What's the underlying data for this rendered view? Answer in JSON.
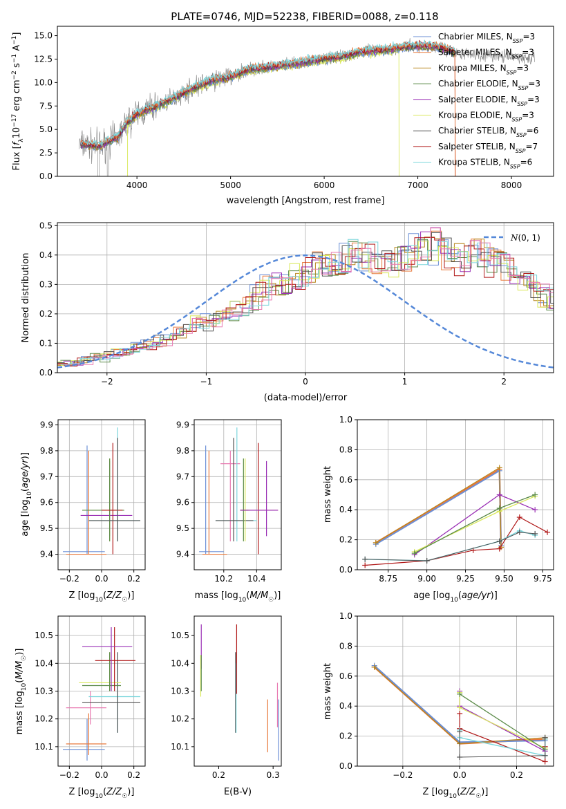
{
  "title": "PLATE=0746, MJD=52238, FIBERID=0088, z=0.118",
  "colors": {
    "Chabrier MILES": "#6b8fd6",
    "Salpeter MILES": "#e8783a",
    "Kroupa MILES": "#b8861c",
    "Chabrier ELODIE": "#5a8a48",
    "Salpeter ELODIE": "#9a2fb5",
    "Kroupa ELODIE": "#d9e85a",
    "Chabrier STELIB": "#505050",
    "Salpeter STELIB": "#b01818",
    "Kroupa STELIB": "#7ad6dc",
    "pink": "#e878b0",
    "observed": "#808080"
  },
  "chart_data": [
    {
      "type": "line",
      "id": "spectrum",
      "xlabel": "wavelength [Angstrom, rest frame]",
      "ylabel": "Flux [f_λ10^-17 erg cm^-2 s^-1 A^-1]",
      "xlim": [
        3150,
        8450
      ],
      "ylim": [
        0,
        16
      ],
      "xticks": [
        4000,
        5000,
        6000,
        7000,
        8000
      ],
      "yticks": [
        0.0,
        2.5,
        5.0,
        7.5,
        10.0,
        12.5,
        15.0
      ],
      "legend_position": "top-right",
      "legend": [
        {
          "label": "Chabrier MILES, N",
          "sub": "SSP",
          "n": "=3",
          "color_key": "Chabrier MILES"
        },
        {
          "label": "Salpeter MILES, N",
          "sub": "SSP",
          "n": "=3",
          "color_key": "Salpeter MILES"
        },
        {
          "label": "Kroupa MILES, N",
          "sub": "SSP",
          "n": "=3",
          "color_key": "Kroupa MILES"
        },
        {
          "label": "Chabrier ELODIE, N",
          "sub": "SSP",
          "n": "=3",
          "color_key": "Chabrier ELODIE"
        },
        {
          "label": "Salpeter ELODIE, N",
          "sub": "SSP",
          "n": "=3",
          "color_key": "Salpeter ELODIE"
        },
        {
          "label": "Kroupa ELODIE, N",
          "sub": "SSP",
          "n": "=3",
          "color_key": "Kroupa ELODIE"
        },
        {
          "label": "Chabrier STELIB, N",
          "sub": "SSP",
          "n": "=6",
          "color_key": "Chabrier STELIB"
        },
        {
          "label": "Salpeter STELIB, N",
          "sub": "SSP",
          "n": "=7",
          "color_key": "Salpeter STELIB"
        },
        {
          "label": "Kroupa STELIB, N",
          "sub": "SSP",
          "n": "=6",
          "color_key": "Kroupa STELIB"
        }
      ],
      "model_trend": {
        "x": [
          3400,
          3600,
          3800,
          3900,
          4000,
          4200,
          4400,
          4600,
          4800,
          5000,
          5200,
          5400,
          5600,
          5800,
          6000,
          6200,
          6400,
          6600,
          6800,
          7000,
          7200,
          7400
        ],
        "y": [
          3.4,
          3.2,
          4.2,
          5.8,
          6.6,
          7.4,
          8.4,
          9.4,
          10.2,
          10.6,
          11.4,
          11.6,
          11.9,
          12.2,
          12.5,
          12.8,
          13.3,
          13.4,
          13.7,
          13.9,
          13.8,
          13.2
        ]
      },
      "observed_range": [
        3380,
        8250
      ],
      "model_ranges": {
        "Kroupa ELODIE": [
          3900,
          6800
        ],
        "Salpeter MILES": [
          3400,
          7400
        ],
        "Salpeter STELIB": [
          3400,
          7400
        ],
        "Kroupa STELIB": [
          3400,
          7400
        ]
      }
    },
    {
      "type": "histogram",
      "id": "residuals",
      "xlabel": "(data-model)/error",
      "ylabel": "Normed distribution",
      "xlim": [
        -2.5,
        2.5
      ],
      "ylim": [
        0,
        0.51
      ],
      "xticks": [
        -2,
        -1,
        0,
        1,
        2
      ],
      "yticks": [
        0.0,
        0.1,
        0.2,
        0.3,
        0.4,
        0.5
      ],
      "bin_width": 0.1,
      "grid": true,
      "reference": {
        "label": "N(0,1)",
        "mu": 0,
        "sigma": 1,
        "color": "#5588d8",
        "style": "dashed"
      },
      "base_histogram": [
        0.04,
        0.035,
        0.04,
        0.05,
        0.05,
        0.06,
        0.07,
        0.08,
        0.09,
        0.1,
        0.11,
        0.12,
        0.14,
        0.16,
        0.17,
        0.17,
        0.19,
        0.2,
        0.22,
        0.24,
        0.27,
        0.3,
        0.3,
        0.31,
        0.32,
        0.34,
        0.37,
        0.37,
        0.38,
        0.41,
        0.4,
        0.39,
        0.38,
        0.37,
        0.38,
        0.4,
        0.42,
        0.44,
        0.43,
        0.4,
        0.39,
        0.4,
        0.41,
        0.38,
        0.37,
        0.35,
        0.33,
        0.31,
        0.28,
        0.25,
        0.24,
        0.22,
        0.2,
        0.18,
        0.16,
        0.15,
        0.13,
        0.12,
        0.1,
        0.09,
        0.08,
        0.07,
        0.06,
        0.06,
        0.05,
        0.05,
        0.04,
        0.04,
        0.04,
        0.03,
        0.03,
        0.03,
        0.03,
        0.03,
        0.02,
        0.02,
        0.02,
        0.02,
        0.02,
        0.02
      ]
    },
    {
      "type": "errorbar",
      "id": "age-vs-Z",
      "xlabel": "Z [log10(Z/Z☉)]",
      "ylabel": "age  [log10(age/yr)]",
      "xlim": [
        -0.27,
        0.27
      ],
      "ylim": [
        9.34,
        9.92
      ],
      "xticks": [
        -0.2,
        0.0,
        0.2
      ],
      "yticks": [
        9.4,
        9.5,
        9.6,
        9.7,
        9.8,
        9.9
      ],
      "points": [
        {
          "c": "Chabrier MILES",
          "x": -0.09,
          "xe": [
            -0.24,
            0.02
          ],
          "y": 9.41,
          "ye": [
            9.4,
            9.82
          ]
        },
        {
          "c": "Salpeter MILES",
          "x": -0.08,
          "xe": [
            -0.22,
            0.03
          ],
          "y": 9.4,
          "ye": [
            9.4,
            9.8
          ]
        },
        {
          "c": "Salpeter ELODIE",
          "x": 0.05,
          "xe": [
            -0.13,
            0.19
          ],
          "y": 9.55,
          "ye": [
            9.47,
            9.76
          ]
        },
        {
          "c": "Kroupa ELODIE",
          "x": 0.05,
          "xe": [
            -0.12,
            0.14
          ],
          "y": 9.57,
          "ye": [
            9.45,
            9.77
          ]
        },
        {
          "c": "Chabrier ELODIE",
          "x": 0.05,
          "xe": [
            -0.12,
            0.14
          ],
          "y": 9.57,
          "ye": [
            9.45,
            9.77
          ]
        },
        {
          "c": "Salpeter STELIB",
          "x": 0.07,
          "xe": [
            0.0,
            0.13
          ],
          "y": 9.57,
          "ye": [
            9.4,
            9.83
          ]
        },
        {
          "c": "Kroupa STELIB",
          "x": 0.1,
          "xe": [
            -0.08,
            0.24
          ],
          "y": 9.53,
          "ye": [
            9.45,
            9.89
          ]
        },
        {
          "c": "Chabrier STELIB",
          "x": 0.1,
          "xe": [
            -0.08,
            0.24
          ],
          "y": 9.53,
          "ye": [
            9.45,
            9.85
          ]
        }
      ]
    },
    {
      "type": "errorbar",
      "id": "age-vs-mass",
      "xlabel": "mass [log10(M/M☉)]",
      "ylabel": "",
      "xlim": [
        10.02,
        10.55
      ],
      "ylim": [
        9.34,
        9.92
      ],
      "xticks": [
        10.2,
        10.4
      ],
      "yticks": [
        9.4,
        9.5,
        9.6,
        9.7,
        9.8,
        9.9
      ],
      "points": [
        {
          "c": "Chabrier MILES",
          "x": 10.09,
          "xe": [
            10.05,
            10.2
          ],
          "y": 9.41,
          "ye": [
            9.4,
            9.82
          ]
        },
        {
          "c": "Salpeter MILES",
          "x": 10.11,
          "xe": [
            10.07,
            10.22
          ],
          "y": 9.4,
          "ye": [
            9.4,
            9.8
          ]
        },
        {
          "c": "pink",
          "x": 10.24,
          "xe": [
            10.18,
            10.3
          ],
          "y": 9.75,
          "ye": [
            9.45,
            9.8
          ]
        },
        {
          "c": "Kroupa STELIB",
          "x": 10.28,
          "xe": [
            10.15,
            10.4
          ],
          "y": 9.53,
          "ye": [
            9.45,
            9.89
          ]
        },
        {
          "c": "Chabrier STELIB",
          "x": 10.26,
          "xe": [
            10.15,
            10.38
          ],
          "y": 9.53,
          "ye": [
            9.45,
            9.85
          ]
        },
        {
          "c": "Kroupa ELODIE",
          "x": 10.33,
          "xe": [
            10.3,
            10.36
          ],
          "y": 9.57,
          "ye": [
            9.45,
            9.77
          ]
        },
        {
          "c": "Chabrier ELODIE",
          "x": 10.32,
          "xe": [
            10.3,
            10.35
          ],
          "y": 9.57,
          "ye": [
            9.45,
            9.77
          ]
        },
        {
          "c": "Salpeter STELIB",
          "x": 10.41,
          "xe": [
            10.3,
            10.53
          ],
          "y": 9.57,
          "ye": [
            9.4,
            9.83
          ]
        },
        {
          "c": "Salpeter ELODIE",
          "x": 10.46,
          "xe": [
            10.3,
            10.53
          ],
          "y": 9.57,
          "ye": [
            9.47,
            9.76
          ]
        }
      ]
    },
    {
      "type": "line",
      "id": "mass-weight-vs-age",
      "xlabel": "age  [log10(age/yr)]",
      "ylabel": "mass weight",
      "xlim": [
        8.55,
        9.82
      ],
      "ylim": [
        0,
        1
      ],
      "xticks": [
        8.75,
        9.0,
        9.25,
        9.5,
        9.75
      ],
      "yticks": [
        0.0,
        0.2,
        0.4,
        0.6,
        0.8,
        1.0
      ],
      "series": [
        {
          "c": "Salpeter MILES",
          "w": 2.4,
          "x": [
            8.67,
            9.47,
            9.48
          ],
          "y": [
            0.18,
            0.67,
            0.15
          ]
        },
        {
          "c": "Chabrier MILES",
          "w": 2.0,
          "x": [
            8.67,
            9.47,
            9.48
          ],
          "y": [
            0.17,
            0.66,
            0.16
          ]
        },
        {
          "c": "Kroupa MILES",
          "w": 1.2,
          "x": [
            8.67,
            9.47,
            9.48
          ],
          "y": [
            0.18,
            0.68,
            0.15
          ]
        },
        {
          "c": "Salpeter ELODIE",
          "w": 1.3,
          "x": [
            8.92,
            9.47,
            9.7
          ],
          "y": [
            0.1,
            0.5,
            0.4
          ]
        },
        {
          "c": "Kroupa ELODIE",
          "w": 1.3,
          "x": [
            8.92,
            9.47,
            9.7
          ],
          "y": [
            0.12,
            0.39,
            0.49
          ]
        },
        {
          "c": "Chabrier ELODIE",
          "w": 1.3,
          "x": [
            8.92,
            9.47,
            9.7
          ],
          "y": [
            0.11,
            0.41,
            0.5
          ]
        },
        {
          "c": "Salpeter STELIB",
          "w": 1.2,
          "x": [
            8.6,
            9.0,
            9.3,
            9.47,
            9.6,
            9.78
          ],
          "y": [
            0.03,
            0.06,
            0.13,
            0.14,
            0.35,
            0.25
          ]
        },
        {
          "c": "Kroupa STELIB",
          "w": 1.4,
          "x": [
            8.6,
            9.0,
            9.47,
            9.6,
            9.7
          ],
          "y": [
            0.07,
            0.06,
            0.19,
            0.26,
            0.23
          ]
        },
        {
          "c": "Chabrier STELIB",
          "w": 1.0,
          "x": [
            8.6,
            9.0,
            9.47,
            9.6,
            9.7
          ],
          "y": [
            0.07,
            0.06,
            0.19,
            0.25,
            0.24
          ]
        }
      ]
    },
    {
      "type": "errorbar",
      "id": "mass-vs-Z",
      "xlabel": "Z [log10(Z/Z☉)]",
      "ylabel": "mass [log10(M/M☉)]",
      "xlim": [
        -0.27,
        0.27
      ],
      "ylim": [
        10.03,
        10.57
      ],
      "xticks": [
        -0.2,
        0.0,
        0.2
      ],
      "yticks": [
        10.1,
        10.2,
        10.3,
        10.4,
        10.5
      ],
      "points": [
        {
          "c": "Chabrier MILES",
          "x": -0.09,
          "xe": [
            -0.24,
            0.02
          ],
          "y": 10.09,
          "ye": [
            10.05,
            10.2
          ]
        },
        {
          "c": "Salpeter MILES",
          "x": -0.08,
          "xe": [
            -0.22,
            0.03
          ],
          "y": 10.11,
          "ye": [
            10.07,
            10.22
          ]
        },
        {
          "c": "pink",
          "x": -0.07,
          "xe": [
            -0.22,
            0.03
          ],
          "y": 10.24,
          "ye": [
            10.18,
            10.3
          ]
        },
        {
          "c": "Kroupa STELIB",
          "x": 0.1,
          "xe": [
            -0.08,
            0.24
          ],
          "y": 10.28,
          "ye": [
            10.15,
            10.4
          ]
        },
        {
          "c": "Chabrier STELIB",
          "x": 0.1,
          "xe": [
            -0.12,
            0.24
          ],
          "y": 10.26,
          "ye": [
            10.15,
            10.44
          ]
        },
        {
          "c": "Kroupa ELODIE",
          "x": 0.05,
          "xe": [
            -0.14,
            0.12
          ],
          "y": 10.33,
          "ye": [
            10.3,
            10.44
          ]
        },
        {
          "c": "Chabrier ELODIE",
          "x": 0.05,
          "xe": [
            -0.12,
            0.12
          ],
          "y": 10.32,
          "ye": [
            10.3,
            10.44
          ]
        },
        {
          "c": "Salpeter STELIB",
          "x": 0.08,
          "xe": [
            -0.04,
            0.21
          ],
          "y": 10.41,
          "ye": [
            10.3,
            10.53
          ]
        },
        {
          "c": "Salpeter ELODIE",
          "x": 0.06,
          "xe": [
            -0.12,
            0.19
          ],
          "y": 10.46,
          "ye": [
            10.3,
            10.53
          ]
        }
      ]
    },
    {
      "type": "errorbar",
      "id": "mass-vs-EBV",
      "xlabel": "E(B-V)",
      "ylabel": "",
      "xlim": [
        0.155,
        0.315
      ],
      "ylim": [
        10.03,
        10.57
      ],
      "xticks": [
        0.2,
        0.3
      ],
      "yticks": [
        10.1,
        10.2,
        10.3,
        10.4,
        10.5
      ],
      "points": [
        {
          "c": "Salpeter ELODIE",
          "x": 0.168,
          "y": 10.46,
          "ye": [
            10.38,
            10.54
          ]
        },
        {
          "c": "Kroupa ELODIE",
          "x": 0.167,
          "y": 10.33,
          "ye": [
            10.28,
            10.43
          ]
        },
        {
          "c": "Chabrier ELODIE",
          "x": 0.168,
          "y": 10.32,
          "ye": [
            10.3,
            10.43
          ]
        },
        {
          "c": "Chabrier STELIB",
          "x": 0.231,
          "y": 10.26,
          "ye": [
            10.15,
            10.44
          ]
        },
        {
          "c": "Kroupa STELIB",
          "x": 0.232,
          "y": 10.28,
          "ye": [
            10.15,
            10.4
          ]
        },
        {
          "c": "Salpeter STELIB",
          "x": 0.233,
          "y": 10.41,
          "ye": [
            10.29,
            10.54
          ]
        },
        {
          "c": "Salpeter MILES",
          "x": 0.29,
          "y": 10.11,
          "ye": [
            10.08,
            10.27
          ]
        },
        {
          "c": "pink",
          "x": 0.308,
          "y": 10.24,
          "ye": [
            10.17,
            10.33
          ]
        },
        {
          "c": "Chabrier MILES",
          "x": 0.31,
          "y": 10.09,
          "ye": [
            10.05,
            10.27
          ]
        }
      ]
    },
    {
      "type": "line",
      "id": "mass-weight-vs-Z",
      "xlabel": "Z [log10(Z/Z☉)]",
      "ylabel": "mass weight",
      "xlim": [
        -0.36,
        0.33
      ],
      "ylim": [
        0,
        1
      ],
      "xticks": [
        -0.2,
        0.0,
        0.2
      ],
      "yticks": [
        0.0,
        0.2,
        0.4,
        0.6,
        0.8,
        1.0
      ],
      "series": [
        {
          "c": "Salpeter MILES",
          "w": 2.4,
          "x": [
            -0.3,
            0.0,
            0.3
          ],
          "y": [
            0.66,
            0.15,
            0.18
          ]
        },
        {
          "c": "Chabrier MILES",
          "w": 2.0,
          "x": [
            -0.3,
            0.0,
            0.3
          ],
          "y": [
            0.67,
            0.16,
            0.17
          ]
        },
        {
          "c": "Kroupa MILES",
          "w": 1.2,
          "x": [
            -0.3,
            0.0,
            0.3
          ],
          "y": [
            0.66,
            0.15,
            0.19
          ]
        },
        {
          "c": "Salpeter ELODIE",
          "w": 1.3,
          "x": [
            0.0,
            0.0,
            0.3
          ],
          "y": [
            0.5,
            0.4,
            0.1
          ]
        },
        {
          "c": "Kroupa ELODIE",
          "w": 1.3,
          "x": [
            0.0,
            0.0,
            0.3
          ],
          "y": [
            0.49,
            0.39,
            0.12
          ]
        },
        {
          "c": "Chabrier ELODIE",
          "w": 1.3,
          "x": [
            0.0,
            0.3
          ],
          "y": [
            0.48,
            0.11
          ]
        },
        {
          "c": "Salpeter STELIB",
          "w": 1.2,
          "x": [
            0.0,
            0.0,
            0.3,
            0.3
          ],
          "y": [
            0.35,
            0.25,
            0.03,
            0.13
          ]
        },
        {
          "c": "Kroupa STELIB",
          "w": 1.4,
          "x": [
            0.0,
            0.0,
            0.3,
            0.3
          ],
          "y": [
            0.24,
            0.19,
            0.07,
            0.18
          ]
        },
        {
          "c": "Chabrier STELIB",
          "w": 1.0,
          "x": [
            0.0,
            0.0,
            0.3,
            0.3
          ],
          "y": [
            0.23,
            0.06,
            0.07,
            0.19
          ]
        }
      ]
    }
  ]
}
